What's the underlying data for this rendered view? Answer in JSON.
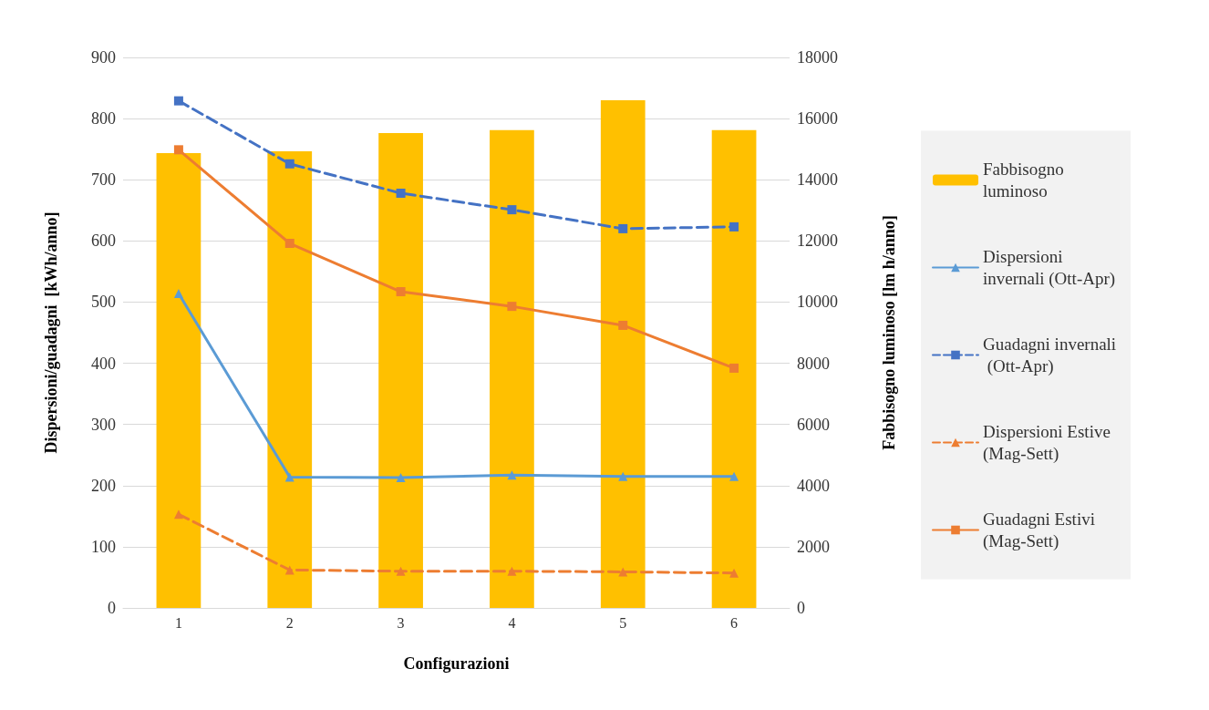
{
  "chart_data": {
    "type": "line",
    "xlabel": "Configurazioni",
    "ylabel": "Dispersioni/guadagni  [kWh/anno]",
    "y2label": "Fabbisogno luminoso [lm h/anno]",
    "categories": [
      "1",
      "2",
      "3",
      "4",
      "5",
      "6"
    ],
    "ylim": [
      0,
      900
    ],
    "yticks": [
      0,
      100,
      200,
      300,
      400,
      500,
      600,
      700,
      800,
      900
    ],
    "y2lim": [
      0,
      18000
    ],
    "y2ticks": [
      0,
      2000,
      4000,
      6000,
      8000,
      10000,
      12000,
      14000,
      16000,
      18000
    ],
    "grid": "y",
    "legend": "right",
    "series": [
      {
        "name": "Fabbisogno luminoso",
        "type": "bar",
        "axis": "y2",
        "color": "#ffc000",
        "values": [
          14870,
          14930,
          15530,
          15620,
          16600,
          15620
        ]
      },
      {
        "name": "Dispersioni invernali (Ott-Apr)",
        "color": "#5b9bd5",
        "marker": "triangle",
        "line_style": "solid",
        "values": [
          514,
          214,
          213,
          217,
          215,
          215
        ]
      },
      {
        "name": "Guadagni invernali (Ott-Apr)",
        "color": "#4472c4",
        "marker": "square",
        "line_style": "dashed",
        "values": [
          829,
          726,
          678,
          651,
          620,
          623
        ]
      },
      {
        "name": "Dispersioni Estive (Mag-Sett)",
        "color": "#ed7d31",
        "marker": "triangle",
        "line_style": "dashed",
        "values": [
          153,
          62,
          60,
          60,
          59,
          57
        ]
      },
      {
        "name": "Guadagni Estivi (Mag-Sett)",
        "color": "#ed7d31",
        "marker": "square",
        "line_style": "solid",
        "values": [
          749,
          596,
          517,
          493,
          462,
          392
        ]
      }
    ]
  }
}
